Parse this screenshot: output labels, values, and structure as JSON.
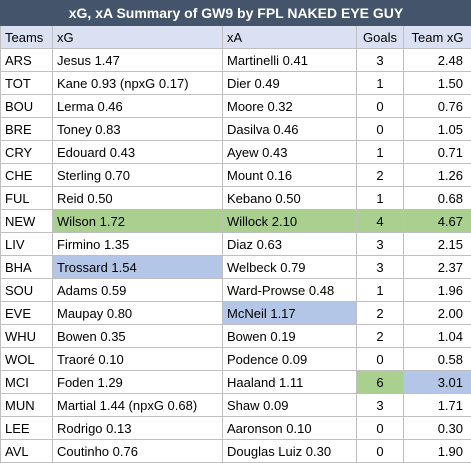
{
  "title": "xG, xA Summary of GW9 by FPL NAKED EYE GUY",
  "columns": [
    "Teams",
    "xG",
    "xA",
    "Goals",
    "Team xG"
  ],
  "colors": {
    "header_bg": "#44546a",
    "subheader_bg": "#d9e1f2",
    "green": "#a9d08e",
    "blue": "#b4c6e7"
  },
  "rows": [
    {
      "team": "ARS",
      "xg": "Jesus 1.47",
      "xa": "Martinelli 0.41",
      "goals": "3",
      "team_xg": "2.48"
    },
    {
      "team": "TOT",
      "xg": "Kane 0.93 (npxG 0.17)",
      "xa": "Dier 0.49",
      "goals": "1",
      "team_xg": "1.50"
    },
    {
      "team": "BOU",
      "xg": "Lerma 0.46",
      "xa": "Moore 0.32",
      "goals": "0",
      "team_xg": "0.76"
    },
    {
      "team": "BRE",
      "xg": "Toney 0.83",
      "xa": "Dasilva 0.46",
      "goals": "0",
      "team_xg": "1.05"
    },
    {
      "team": "CRY",
      "xg": "Edouard 0.43",
      "xa": "Ayew 0.43",
      "goals": "1",
      "team_xg": "0.71"
    },
    {
      "team": "CHE",
      "xg": "Sterling 0.70",
      "xa": "Mount 0.16",
      "goals": "2",
      "team_xg": "1.26"
    },
    {
      "team": "FUL",
      "xg": "Reid 0.50",
      "xa": "Kebano 0.50",
      "goals": "1",
      "team_xg": "0.68"
    },
    {
      "team": "NEW",
      "xg": "Wilson 1.72",
      "xa": "Willock 2.10",
      "goals": "4",
      "team_xg": "4.67"
    },
    {
      "team": "LIV",
      "xg": "Firmino 1.35",
      "xa": "Diaz 0.63",
      "goals": "3",
      "team_xg": "2.15"
    },
    {
      "team": "BHA",
      "xg": "Trossard 1.54",
      "xa": "Welbeck 0.79",
      "goals": "3",
      "team_xg": "2.37"
    },
    {
      "team": "SOU",
      "xg": "Adams 0.59",
      "xa": "Ward-Prowse 0.48",
      "goals": "1",
      "team_xg": "1.96"
    },
    {
      "team": "EVE",
      "xg": "Maupay 0.80",
      "xa": "McNeil 1.17",
      "goals": "2",
      "team_xg": "2.00"
    },
    {
      "team": "WHU",
      "xg": "Bowen 0.35",
      "xa": "Bowen 0.19",
      "goals": "2",
      "team_xg": "1.04"
    },
    {
      "team": "WOL",
      "xg": "Traoré 0.10",
      "xa": "Podence 0.09",
      "goals": "0",
      "team_xg": "0.58"
    },
    {
      "team": "MCI",
      "xg": "Foden 1.29",
      "xa": "Haaland 1.11",
      "goals": "6",
      "team_xg": "3.01"
    },
    {
      "team": "MUN",
      "xg": "Martial 1.44 (npxG 0.68)",
      "xa": "Shaw 0.09",
      "goals": "3",
      "team_xg": "1.71"
    },
    {
      "team": "LEE",
      "xg": "Rodrigo 0.13",
      "xa": "Aaronson 0.10",
      "goals": "0",
      "team_xg": "0.30"
    },
    {
      "team": "AVL",
      "xg": "Coutinho 0.76",
      "xa": "Douglas Luiz 0.30",
      "goals": "0",
      "team_xg": "1.90"
    }
  ]
}
